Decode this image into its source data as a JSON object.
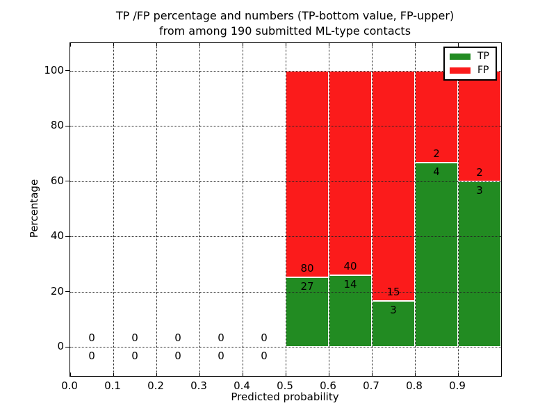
{
  "chart_data": {
    "type": "bar",
    "stacked": true,
    "title_line1": "TP /FP percentage and numbers (TP-bottom value, FP-upper)",
    "title_line2": "from among 190 submitted ML-type contacts",
    "xlabel": "Predicted probability",
    "ylabel": "Percentage",
    "total_contacts": 190,
    "xlim": [
      0.0,
      1.0
    ],
    "ylim": [
      -10.5,
      110
    ],
    "grid": true,
    "grid_style": "dotted",
    "x_ticks": [
      {
        "value": 0.0,
        "label": "0.0"
      },
      {
        "value": 0.1,
        "label": "0.1"
      },
      {
        "value": 0.2,
        "label": "0.2"
      },
      {
        "value": 0.3,
        "label": "0.3"
      },
      {
        "value": 0.4,
        "label": "0.4"
      },
      {
        "value": 0.5,
        "label": "0.5"
      },
      {
        "value": 0.6,
        "label": "0.6"
      },
      {
        "value": 0.7,
        "label": "0.7"
      },
      {
        "value": 0.8,
        "label": "0.8"
      },
      {
        "value": 0.9,
        "label": "0.9"
      }
    ],
    "y_ticks": [
      {
        "value": 0,
        "label": "0"
      },
      {
        "value": 20,
        "label": "20"
      },
      {
        "value": 40,
        "label": "40"
      },
      {
        "value": 60,
        "label": "60"
      },
      {
        "value": 80,
        "label": "80"
      },
      {
        "value": 100,
        "label": "100"
      }
    ],
    "colors": {
      "tp": "#228b22",
      "fp": "#fb1b1b",
      "bar_edge": "#ffffff",
      "grid": "#222222",
      "spine": "#000000"
    },
    "legend": {
      "position": "upper right",
      "entries": [
        {
          "name": "TP",
          "color": "#228b22"
        },
        {
          "name": "FP",
          "color": "#fb1b1b"
        }
      ]
    },
    "bins": [
      {
        "x_start": 0.0,
        "x_end": 0.1,
        "tp_count": 0,
        "fp_count": 0,
        "tp_pct": 0,
        "fp_pct": 0
      },
      {
        "x_start": 0.1,
        "x_end": 0.2,
        "tp_count": 0,
        "fp_count": 0,
        "tp_pct": 0,
        "fp_pct": 0
      },
      {
        "x_start": 0.2,
        "x_end": 0.3,
        "tp_count": 0,
        "fp_count": 0,
        "tp_pct": 0,
        "fp_pct": 0
      },
      {
        "x_start": 0.3,
        "x_end": 0.4,
        "tp_count": 0,
        "fp_count": 0,
        "tp_pct": 0,
        "fp_pct": 0
      },
      {
        "x_start": 0.4,
        "x_end": 0.5,
        "tp_count": 0,
        "fp_count": 0,
        "tp_pct": 0,
        "fp_pct": 0
      },
      {
        "x_start": 0.5,
        "x_end": 0.6,
        "tp_count": 27,
        "fp_count": 80,
        "tp_pct": 25.23,
        "fp_pct": 74.77
      },
      {
        "x_start": 0.6,
        "x_end": 0.7,
        "tp_count": 14,
        "fp_count": 40,
        "tp_pct": 25.93,
        "fp_pct": 74.07
      },
      {
        "x_start": 0.7,
        "x_end": 0.8,
        "tp_count": 3,
        "fp_count": 15,
        "tp_pct": 16.67,
        "fp_pct": 83.33
      },
      {
        "x_start": 0.8,
        "x_end": 0.9,
        "tp_count": 4,
        "fp_count": 2,
        "tp_pct": 66.67,
        "fp_pct": 33.33
      },
      {
        "x_start": 0.9,
        "x_end": 1.0,
        "tp_count": 3,
        "fp_count": 2,
        "tp_pct": 60.0,
        "fp_pct": 40.0
      }
    ]
  }
}
